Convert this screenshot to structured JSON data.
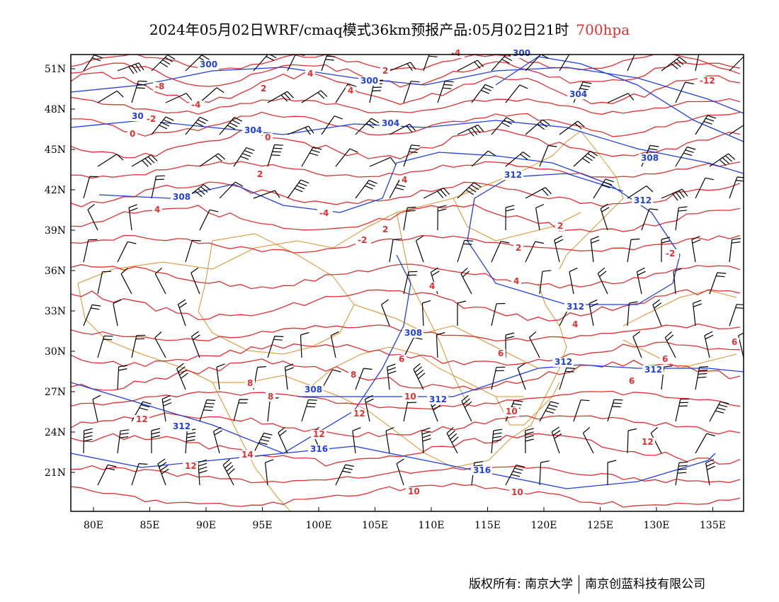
{
  "title": {
    "main": "2024年05月02日WRF/cmaq模式36km预报产品:05月02日21时",
    "level": "700hpa",
    "level_color": "#e03030"
  },
  "axes": {
    "lon_labels": [
      "80E",
      "85E",
      "90E",
      "95E",
      "100E",
      "105E",
      "110E",
      "115E",
      "120E",
      "125E",
      "130E",
      "135E"
    ],
    "lat_labels": [
      "51N",
      "48N",
      "45N",
      "42N",
      "39N",
      "36N",
      "33N",
      "30N",
      "27N",
      "24N",
      "21N"
    ]
  },
  "colors": {
    "geopotential": "#2040e0",
    "temperature": "#e03030",
    "borders": "#e0902a",
    "wind_barbs": "#000000"
  },
  "contour_labels": {
    "geopotential": [
      "300",
      "300",
      "300",
      "304",
      "304",
      "304",
      "308",
      "308",
      "308",
      "308",
      "312",
      "312",
      "312",
      "312",
      "312",
      "312",
      "312",
      "316",
      "316",
      "30"
    ],
    "temperature": [
      "4",
      "4",
      "2",
      "2",
      "-8",
      "-4",
      "-4",
      "-12",
      "-2",
      "0",
      "0",
      "2",
      "4",
      "4",
      "-4",
      "2",
      "-2",
      "2",
      "2",
      "-2",
      "4",
      "4",
      "4",
      "6",
      "6",
      "6",
      "8",
      "6",
      "8",
      "6",
      "8",
      "10",
      "10",
      "12",
      "12",
      "12",
      "12",
      "14",
      "12",
      "10",
      "10"
    ]
  },
  "footer": {
    "copyright": "版权所有: 南京大学",
    "company": "南京创蓝科技有限公司"
  }
}
